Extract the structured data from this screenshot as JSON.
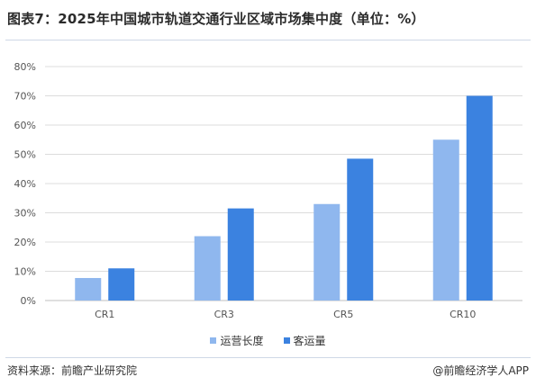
{
  "title": "图表7：2025年中国城市轨道交通行业区域市场集中度（单位：%）",
  "source": "资料来源：前瞻产业研究院",
  "brand": "@前瞻经济学人APP",
  "colors": {
    "series_light": "#8fb7ee",
    "series_dark": "#3b82e0",
    "grid": "#dcdcdc",
    "axis": "#bfbfbf"
  },
  "chart_data": {
    "type": "bar",
    "categories": [
      "CR1",
      "CR3",
      "CR5",
      "CR10"
    ],
    "series": [
      {
        "name": "运营长度",
        "values": [
          7.7,
          22,
          33,
          55
        ]
      },
      {
        "name": "客运量",
        "values": [
          11,
          31.5,
          48.5,
          70
        ]
      }
    ],
    "ylim": [
      0,
      80
    ],
    "yticks": [
      "0%",
      "10%",
      "20%",
      "30%",
      "40%",
      "50%",
      "60%",
      "70%",
      "80%"
    ],
    "legend_position": "bottom",
    "grid": true
  }
}
